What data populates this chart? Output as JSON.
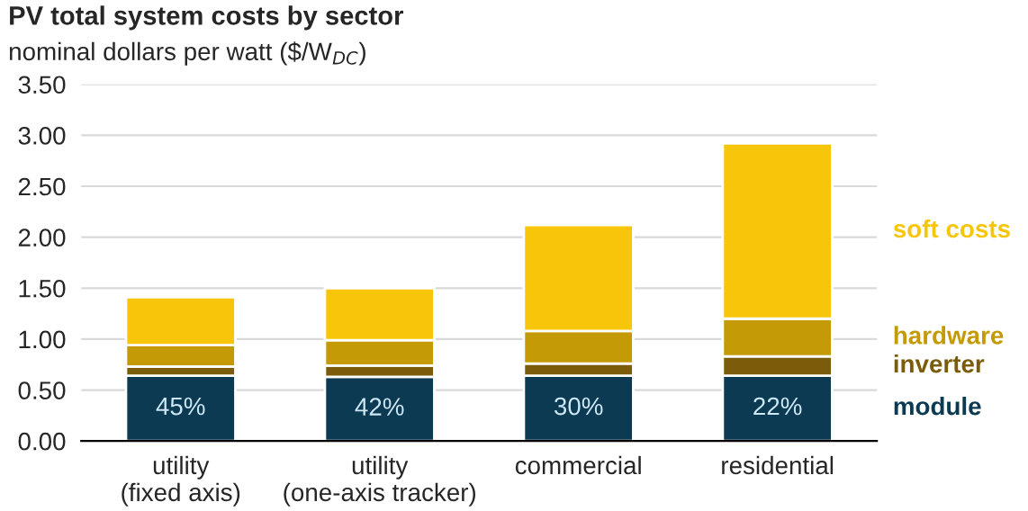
{
  "chart_data": {
    "type": "bar",
    "stacked": true,
    "title": "PV total system costs by sector",
    "subtitle": "nominal dollars per watt ($/W$_{DC}$)",
    "categories": [
      "utility\n(fixed axis)",
      "utility\n(one-axis tracker)",
      "commercial",
      "residential"
    ],
    "series": [
      {
        "name": "module",
        "color": "#0b3a52",
        "values": [
          0.64,
          0.63,
          0.64,
          0.64
        ]
      },
      {
        "name": "inverter",
        "color": "#7a5c0a",
        "values": [
          0.09,
          0.11,
          0.12,
          0.19
        ]
      },
      {
        "name": "hardware",
        "color": "#c49a06",
        "values": [
          0.21,
          0.25,
          0.32,
          0.37
        ]
      },
      {
        "name": "soft costs",
        "color": "#f7c60a",
        "values": [
          0.47,
          0.51,
          1.04,
          1.72
        ]
      }
    ],
    "ylim": [
      0,
      3.5
    ],
    "yticks": [
      {
        "value": 0,
        "label": "0.00"
      },
      {
        "value": 0.5,
        "label": "0.50"
      },
      {
        "value": 1,
        "label": "1.00"
      },
      {
        "value": 1.5,
        "label": "1.50"
      },
      {
        "value": 2,
        "label": "2.00"
      },
      {
        "value": 2.5,
        "label": "2.50"
      },
      {
        "value": 3,
        "label": "3.00"
      },
      {
        "value": 3.5,
        "label": "3.50"
      }
    ],
    "annotations": [
      "45%",
      "42%",
      "30%",
      "22%"
    ],
    "grid": "y",
    "legend": "right"
  }
}
